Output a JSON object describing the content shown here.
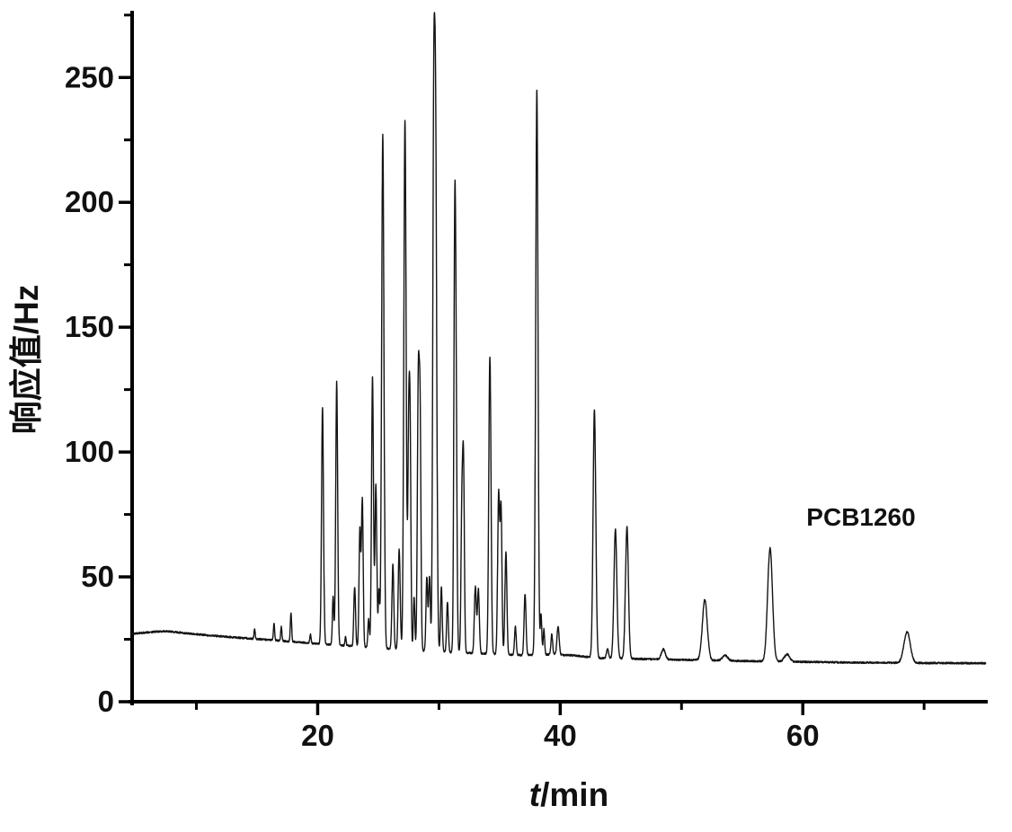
{
  "figure": {
    "background": "#ffffff",
    "trace_color": "#141414",
    "axis_color": "#000000"
  },
  "chart_data": {
    "type": "line",
    "title": "",
    "ylabel": "响应值/Hz",
    "xlabel_italic": "t",
    "xlabel_rest": "/min",
    "annotation": {
      "text": "PCB1260",
      "t": 60.3,
      "value": 70.5
    },
    "x_range": [
      4.7,
      75.1
    ],
    "y_range": [
      0,
      276
    ],
    "x_major_ticks": [
      20,
      40,
      60
    ],
    "x_minor_ticks": [
      10,
      30,
      50,
      70
    ],
    "y_major_ticks": [
      0,
      50,
      100,
      150,
      200,
      250
    ],
    "y_minor_ticks": [
      25,
      75,
      125,
      175,
      225,
      275
    ],
    "grid": false,
    "legend": "none",
    "baseline": [
      [
        4.74,
        27.2
      ],
      [
        6.5,
        28.0
      ],
      [
        7.5,
        28.3
      ],
      [
        9,
        27.5
      ],
      [
        11,
        26.6
      ],
      [
        13,
        25.8
      ],
      [
        15,
        25.1
      ],
      [
        17,
        24.4
      ],
      [
        19,
        23.6
      ],
      [
        21,
        22.9
      ],
      [
        23,
        22.2
      ],
      [
        25,
        21.5
      ],
      [
        27,
        20.9
      ],
      [
        29,
        20.3
      ],
      [
        31,
        19.8
      ],
      [
        33,
        19.4
      ],
      [
        35,
        19.0
      ],
      [
        37,
        18.6
      ],
      [
        39,
        18.9
      ],
      [
        41,
        18.6
      ],
      [
        43,
        17.5
      ],
      [
        46,
        17.2
      ],
      [
        49,
        16.9
      ],
      [
        52,
        16.6
      ],
      [
        55,
        16.3
      ],
      [
        58,
        16.1
      ],
      [
        61,
        15.9
      ],
      [
        64,
        15.7
      ],
      [
        67,
        15.6
      ],
      [
        70,
        15.5
      ],
      [
        75.1,
        15.4
      ]
    ],
    "peaks": [
      [
        14.8,
        29,
        0.05
      ],
      [
        16.4,
        31.5,
        0.05
      ],
      [
        17.0,
        30,
        0.05
      ],
      [
        17.8,
        35.5,
        0.055
      ],
      [
        19.4,
        27,
        0.05
      ],
      [
        20.4,
        118,
        0.08
      ],
      [
        21.27,
        42,
        0.06
      ],
      [
        21.57,
        128,
        0.08
      ],
      [
        22.3,
        26,
        0.05
      ],
      [
        23.05,
        46,
        0.07
      ],
      [
        23.48,
        69,
        0.07
      ],
      [
        23.68,
        81,
        0.07
      ],
      [
        24.2,
        33,
        0.06
      ],
      [
        24.52,
        130,
        0.08
      ],
      [
        24.8,
        87,
        0.075
      ],
      [
        25.05,
        44,
        0.06
      ],
      [
        25.37,
        227,
        0.095
      ],
      [
        26.2,
        55,
        0.075
      ],
      [
        26.72,
        61,
        0.08
      ],
      [
        27.2,
        233,
        0.095
      ],
      [
        27.5,
        100,
        0.07
      ],
      [
        27.62,
        102,
        0.07
      ],
      [
        27.95,
        42,
        0.06
      ],
      [
        28.3,
        128,
        0.08
      ],
      [
        28.45,
        106,
        0.07
      ],
      [
        29.0,
        50,
        0.07
      ],
      [
        29.22,
        50,
        0.07
      ],
      [
        29.56,
        200,
        0.08
      ],
      [
        29.72,
        229,
        0.095
      ],
      [
        30.2,
        46,
        0.07
      ],
      [
        30.7,
        40,
        0.07
      ],
      [
        31.28,
        125,
        0.07
      ],
      [
        31.38,
        147,
        0.085
      ],
      [
        31.88,
        71,
        0.07
      ],
      [
        32.02,
        95,
        0.075
      ],
      [
        33.0,
        46,
        0.08
      ],
      [
        33.25,
        45,
        0.08
      ],
      [
        34.2,
        138,
        0.09
      ],
      [
        34.92,
        83,
        0.08
      ],
      [
        35.12,
        77,
        0.075
      ],
      [
        35.52,
        60,
        0.08
      ],
      [
        36.3,
        30,
        0.07
      ],
      [
        37.1,
        43,
        0.08
      ],
      [
        38.07,
        245,
        0.095
      ],
      [
        38.42,
        35,
        0.06
      ],
      [
        38.65,
        29,
        0.06
      ],
      [
        39.3,
        27,
        0.07
      ],
      [
        39.82,
        30,
        0.09
      ],
      [
        42.82,
        117,
        0.11
      ],
      [
        43.9,
        21,
        0.09
      ],
      [
        44.55,
        69,
        0.12
      ],
      [
        45.5,
        70,
        0.12
      ],
      [
        48.5,
        21,
        0.16
      ],
      [
        51.92,
        41,
        0.2
      ],
      [
        53.6,
        18.5,
        0.22
      ],
      [
        57.3,
        61.5,
        0.2
      ],
      [
        58.7,
        19,
        0.22
      ],
      [
        68.6,
        28,
        0.26
      ]
    ]
  }
}
